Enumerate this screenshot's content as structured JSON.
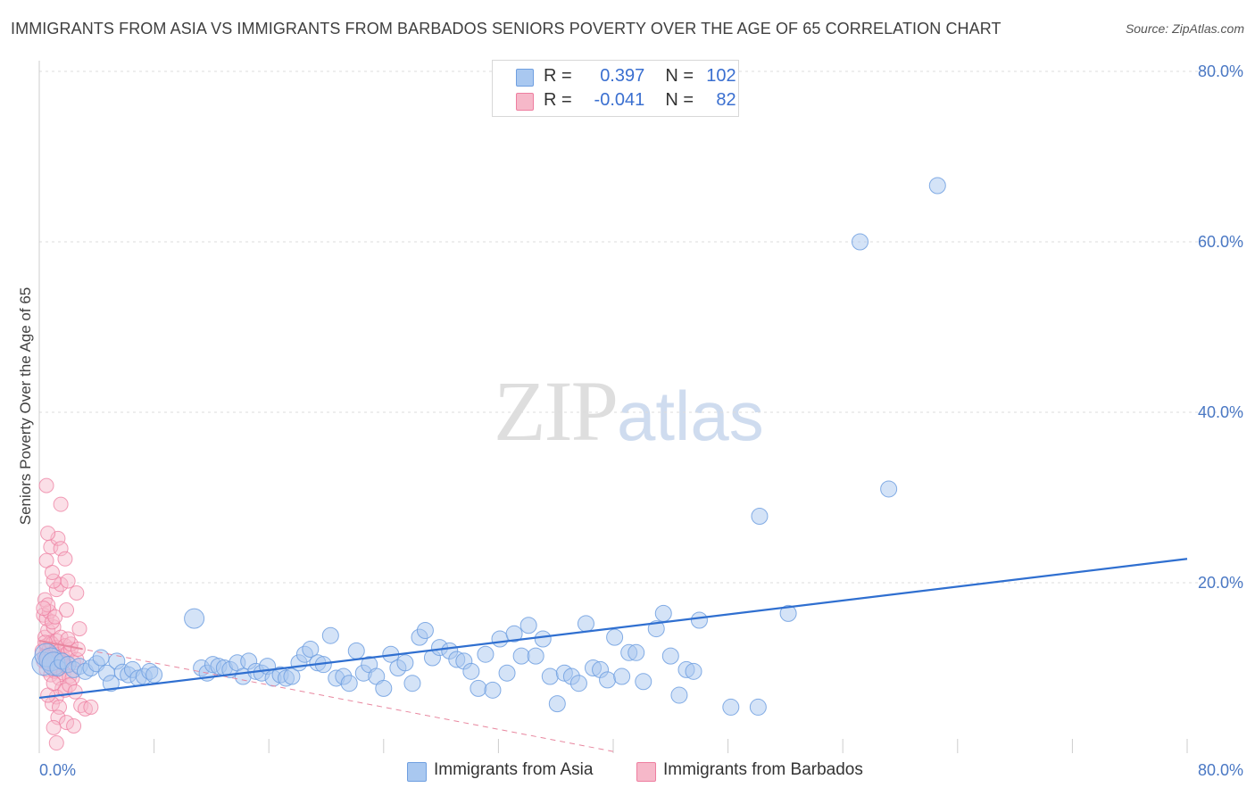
{
  "title": "IMMIGRANTS FROM ASIA VS IMMIGRANTS FROM BARBADOS SENIORS POVERTY OVER THE AGE OF 65 CORRELATION CHART",
  "source": "Source: ZipAtlas.com",
  "watermark": {
    "zip": "ZIP",
    "atlas": "atlas"
  },
  "legend": {
    "rows": [
      {
        "r_label": "R =",
        "r_value": "0.397",
        "n_label": "N =",
        "n_value": "102",
        "color": "#a9c8f0"
      },
      {
        "r_label": "R =",
        "r_value": "-0.041",
        "n_label": "N =",
        "n_value": "82",
        "color": "#f6b8c9"
      }
    ]
  },
  "bottom_legend": {
    "asia": "Immigrants from Asia",
    "barbados": "Immigrants from Barbados"
  },
  "colors": {
    "asia_fill": "#a9c8f0",
    "asia_stroke": "#6f9fe0",
    "asia_line": "#2f6fd0",
    "barbados_fill": "#f6b8c9",
    "barbados_stroke": "#ee7ea0",
    "barbados_line": "#e8879f",
    "grid": "#dcdcdc",
    "tick_text": "#4a78c4"
  },
  "chart_data": {
    "type": "scatter",
    "title": "IMMIGRANTS FROM ASIA VS IMMIGRANTS FROM BARBADOS SENIORS POVERTY OVER THE AGE OF 65 CORRELATION CHART",
    "xlabel": "",
    "ylabel": "Seniors Poverty Over the Age of 65",
    "xlim": [
      0,
      80
    ],
    "ylim": [
      0,
      80
    ],
    "x_tick_labels": [
      "0.0%",
      "80.0%"
    ],
    "y_ticks": [
      20,
      40,
      60,
      80
    ],
    "y_tick_labels": [
      "20.0%",
      "40.0%",
      "60.0%",
      "80.0%"
    ],
    "series": [
      {
        "name": "Immigrants from Asia",
        "r": 0.397,
        "n": 102,
        "trend": {
          "x": [
            0,
            80
          ],
          "y": [
            6.5,
            22.8
          ]
        },
        "points": [
          [
            0.3,
            10.5,
            2
          ],
          [
            0.5,
            11.5,
            2
          ],
          [
            0.8,
            11.0,
            2
          ],
          [
            1.0,
            10.5,
            2
          ],
          [
            1.3,
            10.0,
            1
          ],
          [
            1.6,
            10.8,
            1
          ],
          [
            2.0,
            10.4,
            1
          ],
          [
            2.4,
            9.8,
            1
          ],
          [
            2.8,
            10.2,
            1
          ],
          [
            3.2,
            9.6,
            1
          ],
          [
            3.6,
            10.0,
            1
          ],
          [
            4.0,
            10.5,
            1
          ],
          [
            4.3,
            11.2,
            1
          ],
          [
            4.7,
            9.4,
            1
          ],
          [
            5.0,
            8.2,
            1
          ],
          [
            5.4,
            10.8,
            1
          ],
          [
            5.8,
            9.5,
            1
          ],
          [
            6.2,
            9.2,
            1
          ],
          [
            6.5,
            9.8,
            1
          ],
          [
            6.9,
            8.8,
            1
          ],
          [
            7.3,
            9.0,
            1
          ],
          [
            7.7,
            9.6,
            1
          ],
          [
            8.0,
            9.2,
            1
          ],
          [
            10.8,
            15.8,
            1
          ],
          [
            11.3,
            10.0,
            1
          ],
          [
            11.7,
            9.4,
            1
          ],
          [
            12.1,
            10.4,
            1
          ],
          [
            12.5,
            10.2,
            1
          ],
          [
            12.9,
            10.0,
            1
          ],
          [
            13.3,
            9.8,
            1
          ],
          [
            13.8,
            10.6,
            1
          ],
          [
            14.2,
            9.0,
            1
          ],
          [
            14.6,
            10.8,
            1
          ],
          [
            15.1,
            9.6,
            1
          ],
          [
            15.5,
            9.4,
            1
          ],
          [
            15.9,
            10.2,
            1
          ],
          [
            16.3,
            8.8,
            1
          ],
          [
            16.8,
            9.2,
            1
          ],
          [
            17.2,
            8.8,
            1
          ],
          [
            17.6,
            9.0,
            1
          ],
          [
            18.1,
            10.6,
            1
          ],
          [
            18.5,
            11.6,
            1
          ],
          [
            18.9,
            12.2,
            1
          ],
          [
            19.4,
            10.6,
            1
          ],
          [
            19.8,
            10.4,
            1
          ],
          [
            20.3,
            13.8,
            1
          ],
          [
            20.7,
            8.8,
            1
          ],
          [
            21.2,
            9.0,
            1
          ],
          [
            21.6,
            8.2,
            1
          ],
          [
            22.1,
            12.0,
            1
          ],
          [
            22.6,
            9.4,
            1
          ],
          [
            23.0,
            10.4,
            1
          ],
          [
            23.5,
            9.0,
            1
          ],
          [
            24.0,
            7.6,
            1
          ],
          [
            24.5,
            11.6,
            1
          ],
          [
            25.0,
            10.0,
            1
          ],
          [
            25.5,
            10.6,
            1
          ],
          [
            26.0,
            8.2,
            1
          ],
          [
            26.5,
            13.6,
            1
          ],
          [
            26.9,
            14.4,
            1
          ],
          [
            27.4,
            11.2,
            1
          ],
          [
            27.9,
            12.4,
            1
          ],
          [
            28.6,
            12.0,
            1
          ],
          [
            29.1,
            11.0,
            1
          ],
          [
            29.6,
            10.8,
            1
          ],
          [
            30.1,
            9.6,
            1
          ],
          [
            30.6,
            7.6,
            1
          ],
          [
            31.1,
            11.6,
            1
          ],
          [
            31.6,
            7.4,
            1
          ],
          [
            32.1,
            13.4,
            1
          ],
          [
            32.6,
            9.4,
            1
          ],
          [
            33.1,
            14.0,
            1
          ],
          [
            33.6,
            11.4,
            1
          ],
          [
            34.1,
            15.0,
            1
          ],
          [
            34.6,
            11.4,
            1
          ],
          [
            35.1,
            13.4,
            1
          ],
          [
            35.6,
            9.0,
            1
          ],
          [
            36.1,
            5.8,
            1
          ],
          [
            36.6,
            9.4,
            1
          ],
          [
            37.1,
            9.0,
            1
          ],
          [
            37.6,
            8.2,
            1
          ],
          [
            38.1,
            15.2,
            1
          ],
          [
            38.6,
            10.0,
            1
          ],
          [
            39.1,
            9.8,
            1
          ],
          [
            39.6,
            8.6,
            1
          ],
          [
            40.1,
            13.6,
            1
          ],
          [
            40.6,
            9.0,
            1
          ],
          [
            41.1,
            11.8,
            1
          ],
          [
            41.6,
            11.8,
            1
          ],
          [
            42.1,
            8.4,
            1
          ],
          [
            43.0,
            14.6,
            1
          ],
          [
            43.5,
            16.4,
            1
          ],
          [
            44.0,
            11.4,
            1
          ],
          [
            44.6,
            6.8,
            1
          ],
          [
            45.1,
            9.8,
            1
          ],
          [
            45.6,
            9.6,
            1
          ],
          [
            46.0,
            15.6,
            1
          ],
          [
            48.2,
            5.4,
            1
          ],
          [
            50.1,
            5.4,
            1
          ],
          [
            52.2,
            16.4,
            1
          ],
          [
            50.2,
            27.8,
            1
          ],
          [
            57.2,
            60.0,
            1
          ],
          [
            59.2,
            31.0,
            1
          ],
          [
            62.6,
            66.6,
            1
          ]
        ]
      },
      {
        "name": "Immigrants from Barbados",
        "r": -0.041,
        "n": 82,
        "trend": {
          "x": [
            0,
            40
          ],
          "y": [
            13.2,
            0.2
          ]
        },
        "points": [
          [
            0.2,
            12.0
          ],
          [
            0.3,
            10.8
          ],
          [
            0.4,
            13.6
          ],
          [
            0.4,
            11.4
          ],
          [
            0.5,
            12.6
          ],
          [
            0.5,
            9.8
          ],
          [
            0.6,
            14.4
          ],
          [
            0.6,
            11.0
          ],
          [
            0.7,
            12.2
          ],
          [
            0.7,
            10.4
          ],
          [
            0.8,
            13.0
          ],
          [
            0.8,
            9.2
          ],
          [
            0.9,
            11.6
          ],
          [
            0.9,
            12.8
          ],
          [
            1.0,
            10.6
          ],
          [
            1.0,
            14.8
          ],
          [
            1.1,
            11.8
          ],
          [
            1.1,
            9.6
          ],
          [
            1.2,
            12.4
          ],
          [
            1.2,
            13.2
          ],
          [
            1.3,
            10.0
          ],
          [
            1.3,
            11.2
          ],
          [
            1.4,
            12.0
          ],
          [
            1.4,
            8.8
          ],
          [
            1.5,
            13.6
          ],
          [
            1.5,
            10.8
          ],
          [
            1.6,
            11.4
          ],
          [
            1.7,
            9.4
          ],
          [
            1.8,
            12.6
          ],
          [
            1.9,
            10.2
          ],
          [
            2.0,
            11.8
          ],
          [
            2.1,
            9.0
          ],
          [
            2.2,
            12.2
          ],
          [
            2.4,
            10.6
          ],
          [
            2.6,
            11.0
          ],
          [
            0.3,
            16.2
          ],
          [
            0.5,
            15.8
          ],
          [
            0.7,
            16.6
          ],
          [
            0.9,
            15.4
          ],
          [
            1.1,
            16.0
          ],
          [
            0.4,
            18.0
          ],
          [
            0.6,
            17.4
          ],
          [
            1.2,
            19.2
          ],
          [
            1.5,
            19.8
          ],
          [
            0.5,
            22.6
          ],
          [
            0.8,
            24.2
          ],
          [
            1.3,
            25.2
          ],
          [
            1.5,
            24.0
          ],
          [
            0.6,
            25.8
          ],
          [
            0.5,
            31.4
          ],
          [
            1.5,
            29.2
          ],
          [
            1.0,
            20.2
          ],
          [
            2.0,
            20.2
          ],
          [
            2.6,
            18.8
          ],
          [
            2.8,
            14.6
          ],
          [
            1.8,
            22.8
          ],
          [
            0.9,
            21.2
          ],
          [
            1.9,
            16.8
          ],
          [
            2.2,
            12.8
          ],
          [
            2.3,
            8.8
          ],
          [
            1.6,
            7.6
          ],
          [
            1.2,
            6.6
          ],
          [
            0.9,
            5.8
          ],
          [
            0.6,
            6.8
          ],
          [
            1.4,
            5.4
          ],
          [
            1.8,
            7.4
          ],
          [
            2.1,
            8.0
          ],
          [
            2.5,
            7.2
          ],
          [
            2.9,
            5.6
          ],
          [
            3.2,
            5.2
          ],
          [
            3.6,
            5.4
          ],
          [
            1.3,
            4.2
          ],
          [
            1.9,
            3.6
          ],
          [
            2.4,
            3.2
          ],
          [
            1.0,
            3.0
          ],
          [
            1.2,
            1.2
          ],
          [
            0.3,
            17.0
          ],
          [
            0.4,
            13.0
          ],
          [
            2.7,
            12.2
          ],
          [
            1.6,
            10.6
          ],
          [
            2.0,
            13.4
          ],
          [
            1.0,
            8.2
          ]
        ]
      }
    ]
  }
}
